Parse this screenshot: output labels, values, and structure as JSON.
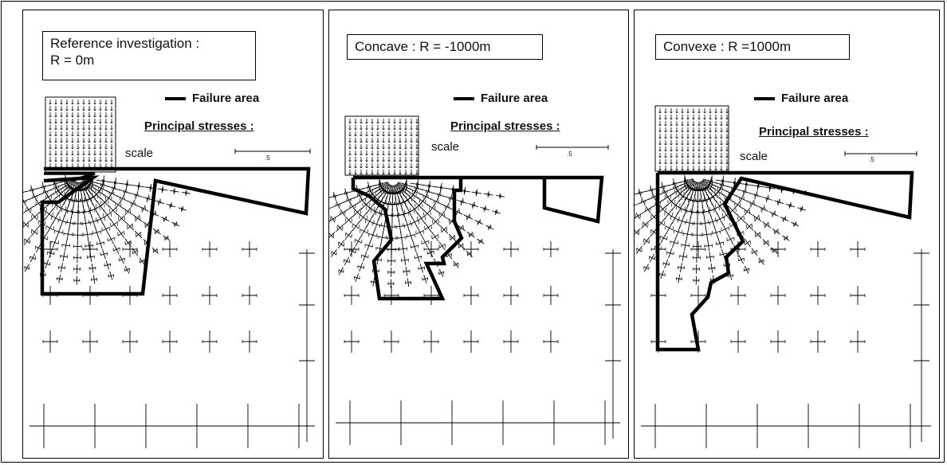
{
  "panels": [
    {
      "title": "Reference investigation :\nR = 0m",
      "legend_label": "Failure area",
      "principal_label": "Principal stresses :",
      "scale_label": "scale",
      "scale_value": ".5"
    },
    {
      "title": "Concave : R = -1000m",
      "legend_label": "Failure area",
      "principal_label": "Principal stresses :",
      "scale_label": "scale",
      "scale_value": ".5"
    },
    {
      "title": "Convexe : R =1000m",
      "legend_label": "Failure area",
      "principal_label": "Principal stresses :",
      "scale_label": "scale",
      "scale_value": ".5"
    }
  ],
  "colors": {
    "ink": "#000000",
    "background": "#ffffff"
  }
}
